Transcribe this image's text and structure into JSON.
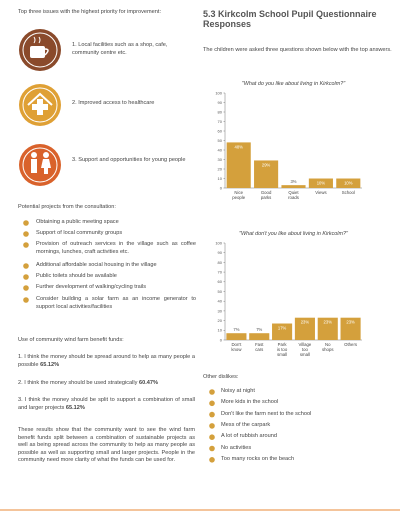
{
  "left": {
    "heading": "Top three issues with the highest priority for improvement:",
    "issues": [
      "1. Local facilities such as a shop, cafe, community centre etc.",
      "2. Improved access to healthcare",
      "3. Support and opportunities for young people"
    ],
    "projects_heading": "Potential projects from the consultation:",
    "projects": [
      "Obtaining a public meeting space",
      "Support of local community groups",
      "Provision of outreach services in the village such as coffee mornings, lunches, craft activities etc.",
      "Additional affordable social housing in the village",
      "Public toilets should be available",
      "Further development of walking/cycling trails",
      "Consider building a solar farm as an income generator to support local activities/facilities"
    ],
    "funds_heading": "Use of community wind farm benefit funds:",
    "funds": [
      {
        "text": "1. I think the money should be spread around to help as many people a possible",
        "figure": "65.12%"
      },
      {
        "text": "2. I think the money should be used strategically",
        "figure": "60.47%"
      },
      {
        "text": "3. I think the money should be split to support a combination of small and larger projects",
        "figure": "65.12%"
      }
    ],
    "conclusion": "These results show that the community want to see the wind farm benefit funds split between a combination of sustainable projects as well as being spread across the community to help as many people as possible as well as supporting small and larger projects. People in the community need more clarity of what the funds can be used for."
  },
  "right": {
    "title": "5.3 Kirkcolm School Pupil Questionnaire Responses",
    "intro": "The children were asked three questions shown below with the top answers.",
    "charts": [
      {
        "type": "bar",
        "title": "\"What do you like about living in Kirkcolm?\"",
        "categories": [
          [
            "Nice",
            "people"
          ],
          [
            "Good",
            "parks"
          ],
          [
            "Quiet",
            "roads"
          ],
          [
            "Views"
          ],
          [
            "School"
          ]
        ],
        "values": [
          48,
          29,
          3,
          10,
          10
        ],
        "value_labels": [
          "48%",
          "29%",
          "3%",
          "10%",
          "10%"
        ],
        "ylim": [
          0,
          100
        ],
        "yticks": [
          0,
          10,
          20,
          30,
          40,
          50,
          60,
          70,
          80,
          90,
          100
        ],
        "color": "#d4a03c"
      },
      {
        "type": "bar",
        "title": "\"What don't you like about living in Kirkcolm?\"",
        "categories": [
          [
            "Don't",
            "know"
          ],
          [
            "Fast",
            "cars"
          ],
          [
            "Park",
            "is too",
            "small"
          ],
          [
            "Village",
            "too",
            "small"
          ],
          [
            "No",
            "shops"
          ],
          [
            "Others"
          ]
        ],
        "values": [
          7,
          7,
          17,
          23,
          23,
          23
        ],
        "value_labels": [
          "7%",
          "7%",
          "17%",
          "23%",
          "23%",
          "23%"
        ],
        "ylim": [
          0,
          100
        ],
        "yticks": [
          0,
          10,
          20,
          30,
          40,
          50,
          60,
          70,
          80,
          90,
          100
        ],
        "color": "#d4a03c"
      }
    ],
    "dislikes_heading": "Other dislikes:",
    "dislikes": [
      "Noisy at night",
      "More kids in the school",
      "Don't like the farm next to the school",
      "Mess of the carpark",
      "A lot of rubbish around",
      "No activities",
      "Too many rocks on the beach"
    ]
  }
}
